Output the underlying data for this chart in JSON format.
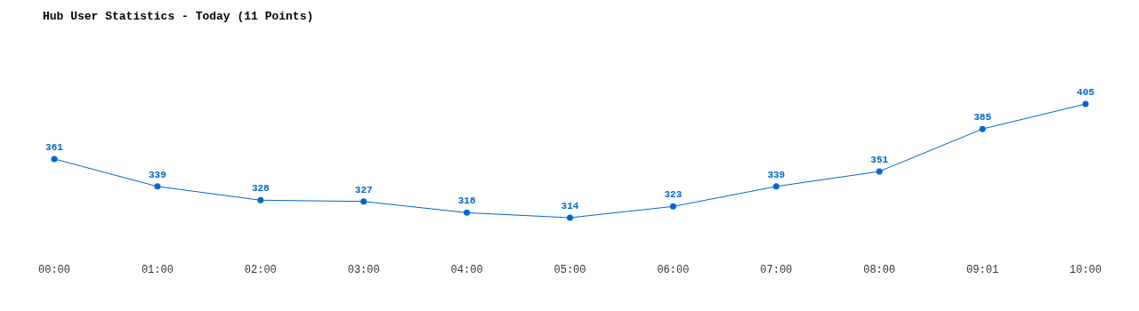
{
  "chart_data": {
    "type": "line",
    "title": "Hub User Statistics - Today (11 Points)",
    "categories": [
      "00:00",
      "01:00",
      "02:00",
      "03:00",
      "04:00",
      "05:00",
      "06:00",
      "07:00",
      "08:00",
      "09:01",
      "10:00"
    ],
    "series": [
      {
        "color": "#0066cc",
        "values": [
          361,
          339,
          328,
          327,
          318,
          314,
          323,
          339,
          351,
          385,
          405
        ]
      }
    ],
    "marker": "circle",
    "data_labels": true
  }
}
